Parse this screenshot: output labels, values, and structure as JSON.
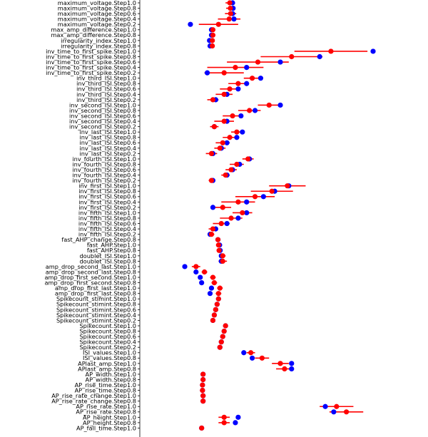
{
  "chart_data": {
    "type": "scatter",
    "orientation": "horizontal",
    "title": "",
    "xlabel": "",
    "ylabel": "",
    "xlim": [
      0,
      100
    ],
    "grid": false,
    "colors": {
      "red_series": "#ff0000",
      "blue_series": "#0000ff",
      "error_bar": "#ff0000"
    },
    "series": [
      {
        "marker": "blue dot",
        "color": "#0000ff"
      },
      {
        "marker": "red dot with horizontal error bar",
        "color": "#ff0000",
        "has_error_bars": true
      }
    ],
    "categories": [
      "maximum_voltage.Step1.0",
      "maximum_voltage.Step0.8",
      "maximum_voltage.Step0.6",
      "maximum_voltage.Step0.4",
      "maximum_voltage.Step0.2",
      "max_amp_difference.Step1.0",
      "max_amp_difference.Step0.8",
      "irregularity_index.Step1.0",
      "irregularity_index.Step0.8",
      "inv_time_to_first_spike.Step1.0",
      "inv_time_to_first_spike.Step0.8",
      "inv_time_to_first_spike.Step0.6",
      "inv_time_to_first_spike.Step0.4",
      "inv_time_to_first_spike.Step0.2",
      "inv_third_ISI.Step1.0",
      "inv_third_ISI.Step0.8",
      "inv_third_ISI.Step0.6",
      "inv_third_ISI.Step0.4",
      "inv_third_ISI.Step0.2",
      "inv_second_ISI.Step1.0",
      "inv_second_ISI.Step0.8",
      "inv_second_ISI.Step0.6",
      "inv_second_ISI.Step0.4",
      "inv_second_ISI.Step0.2",
      "inv_last_ISI.Step1.0",
      "inv_last_ISI.Step0.8",
      "inv_last_ISI.Step0.6",
      "inv_last_ISI.Step0.4",
      "inv_last_ISI.Step0.2",
      "inv_fourth_ISI.Step1.0",
      "inv_fourth_ISI.Step0.8",
      "inv_fourth_ISI.Step0.6",
      "inv_fourth_ISI.Step0.4",
      "inv_fourth_ISI.Step0.2",
      "inv_first_ISI.Step1.0",
      "inv_first_ISI.Step0.8",
      "inv_first_ISI.Step0.6",
      "inv_first_ISI.Step0.4",
      "inv_first_ISI.Step0.2",
      "inv_fifth_ISI.Step1.0",
      "inv_fifth_ISI.Step0.8",
      "inv_fifth_ISI.Step0.6",
      "inv_fifth_ISI.Step0.4",
      "inv_fifth_ISI.Step0.2",
      "fast_AHP_change.Step0.8",
      "fast_AHP.Step1.0",
      "fast_AHP.Step0.8",
      "doublet_ISI.Step1.0",
      "doublet_ISI.Step0.8",
      "amp_drop_second_last.Step1.0",
      "amp_drop_second_last.Step0.8",
      "amp_drop_first_second.Step1.0",
      "amp_drop_first_second.Step0.8",
      "amp_drop_first_last.Step1.0",
      "amp_drop_first_last.Step0.8",
      "Spikecount_stimint.Step1.0",
      "Spikecount_stimint.Step0.8",
      "Spikecount_stimint.Step0.6",
      "Spikecount_stimint.Step0.4",
      "Spikecount_stimint.Step0.2",
      "Spikecount.Step1.0",
      "Spikecount.Step0.8",
      "Spikecount.Step0.6",
      "Spikecount.Step0.4",
      "Spikecount.Step0.2",
      "ISI_values.Step1.0",
      "ISI_values.Step0.8",
      "APlast_amp.Step1.0",
      "APlast_amp.Step0.8",
      "AP_width.Step1.0",
      "AP_width.Step0.8",
      "AP_rise_time.Step1.0",
      "AP_rise_time.Step0.8",
      "AP_rise_rate_change.Step1.0",
      "AP_rise_rate_change.Step0.8",
      "AP_rise_rate.Step1.0",
      "AP_rise_rate.Step0.8",
      "AP_height.Step1.0",
      "AP_height.Step0.8",
      "AP_fall_time.Step1.0"
    ],
    "points": [
      [
        33.0,
        32.0,
        1.5
      ],
      [
        33.2,
        32.2,
        1.5
      ],
      [
        33.0,
        32.3,
        2.0
      ],
      [
        33.5,
        31.8,
        4.0
      ],
      [
        18.0,
        28.0,
        7.0
      ],
      [
        25.5,
        26.0,
        0.5
      ],
      [
        25.5,
        26.0,
        0.5
      ],
      [
        24.8,
        25.8,
        0.7
      ],
      [
        25.0,
        25.8,
        0.7
      ],
      [
        83.0,
        68.0,
        13.0
      ],
      [
        64.0,
        54.0,
        11.0
      ],
      [
        50.0,
        42.0,
        11.0
      ],
      [
        38.0,
        34.0,
        10.0
      ],
      [
        24.0,
        30.0,
        7.0
      ],
      [
        43.0,
        40.0,
        3.0
      ],
      [
        38.0,
        35.0,
        3.5
      ],
      [
        35.0,
        32.0,
        3.5
      ],
      [
        31.0,
        30.0,
        3.0
      ],
      [
        27.0,
        26.0,
        2.0
      ],
      [
        50.0,
        46.0,
        4.0
      ],
      [
        41.0,
        39.0,
        4.0
      ],
      [
        36.0,
        33.0,
        3.5
      ],
      [
        31.0,
        30.0,
        3.5
      ],
      [
        26.5,
        26.5,
        1.5
      ],
      [
        36.5,
        34.5,
        2.0
      ],
      [
        34.5,
        32.0,
        2.5
      ],
      [
        31.0,
        29.5,
        2.5
      ],
      [
        29.0,
        28.5,
        2.0
      ],
      [
        26.0,
        25.5,
        2.0
      ],
      [
        39.0,
        38.5,
        2.0
      ],
      [
        35.5,
        34.5,
        2.5
      ],
      [
        33.0,
        32.5,
        2.0
      ],
      [
        31.0,
        30.5,
        1.5
      ],
      [
        26.0,
        25.5,
        1.0
      ],
      [
        53.0,
        52.5,
        6.5
      ],
      [
        48.0,
        47.0,
        7.5
      ],
      [
        44.0,
        41.0,
        7.0
      ],
      [
        38.0,
        35.0,
        6.0
      ],
      [
        26.0,
        29.5,
        3.0
      ],
      [
        38.0,
        36.5,
        3.5
      ],
      [
        35.0,
        32.5,
        4.0
      ],
      [
        31.0,
        29.0,
        3.0
      ],
      [
        27.0,
        26.0,
        1.5
      ],
      [
        25.0,
        25.5,
        1.0
      ],
      [
        27.8,
        27.8,
        0.8
      ],
      [
        28.4,
        28.0,
        0.8
      ],
      [
        28.6,
        28.2,
        0.8
      ],
      [
        29.0,
        29.5,
        1.0
      ],
      [
        29.0,
        29.5,
        1.5
      ],
      [
        16.0,
        20.0,
        1.5
      ],
      [
        20.0,
        23.0,
        1.0
      ],
      [
        21.5,
        26.0,
        1.0
      ],
      [
        22.0,
        26.5,
        1.0
      ],
      [
        25.5,
        28.5,
        1.0
      ],
      [
        25.0,
        28.0,
        1.0
      ],
      [
        28.0,
        28.0,
        0.8
      ],
      [
        27.5,
        27.5,
        0.8
      ],
      [
        27.0,
        27.0,
        0.8
      ],
      [
        26.5,
        26.5,
        0.8
      ],
      [
        26.0,
        26.0,
        0.8
      ],
      [
        30.5,
        30.5,
        0.6
      ],
      [
        30.0,
        30.0,
        0.6
      ],
      [
        29.5,
        29.5,
        0.6
      ],
      [
        29.0,
        29.0,
        0.6
      ],
      [
        28.5,
        28.5,
        0.6
      ],
      [
        37.0,
        39.5,
        1.5
      ],
      [
        40.0,
        43.5,
        2.5
      ],
      [
        54.0,
        50.0,
        3.0
      ],
      [
        54.0,
        51.5,
        3.0
      ],
      [
        22.5,
        22.5,
        0.4
      ],
      [
        22.5,
        22.5,
        0.4
      ],
      [
        22.3,
        22.3,
        0.4
      ],
      [
        22.3,
        22.3,
        0.4
      ],
      [
        22.5,
        22.5,
        0.4
      ],
      [
        22.5,
        22.5,
        0.4
      ],
      [
        66.0,
        70.0,
        6.0
      ],
      [
        69.0,
        73.5,
        6.0
      ],
      [
        35.0,
        30.0,
        2.0
      ],
      [
        34.0,
        30.0,
        2.0
      ],
      [
        22.0,
        22.0,
        0.5
      ]
    ],
    "point_format": "[blue_x, red_x, red_error]"
  }
}
